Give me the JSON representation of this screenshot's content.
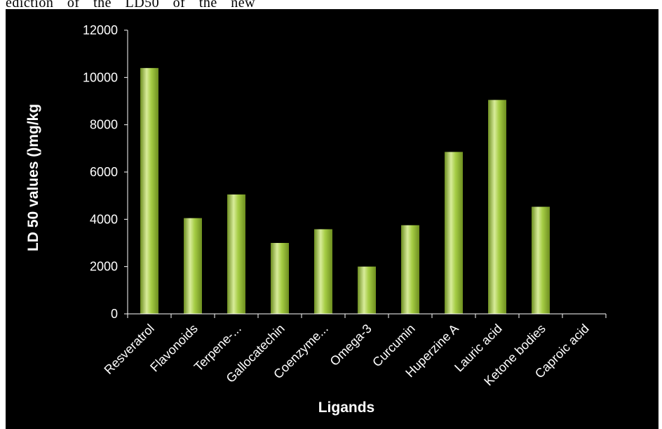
{
  "document": {
    "fragment_text": "ediction of the LD50 of the new"
  },
  "colors": {
    "background": "#000000",
    "axis": "#ffffff",
    "bar_light": "#d8ec9a",
    "bar_mid": "#a6cd45",
    "bar_dark": "#6d8e1f"
  },
  "chart_data": {
    "type": "bar",
    "title": "",
    "xlabel": "Ligands",
    "ylabel": "LD 50 values ()mg/kg",
    "categories": [
      "Resveratrol",
      "Flavonoids",
      "Terpene-...",
      "Gallocatechin",
      "Coenzyme...",
      "Omega-3",
      "Curcumin",
      "Huperzine A",
      "Lauric acid",
      "Ketone bodies",
      "Caproic acid"
    ],
    "values": [
      10400,
      4050,
      5050,
      3000,
      3580,
      2000,
      3750,
      6850,
      9050,
      4530,
      0
    ],
    "ylim": [
      0,
      12000
    ],
    "yticks": [
      0,
      2000,
      4000,
      6000,
      8000,
      10000,
      12000
    ],
    "grid": false,
    "legend": "none"
  }
}
